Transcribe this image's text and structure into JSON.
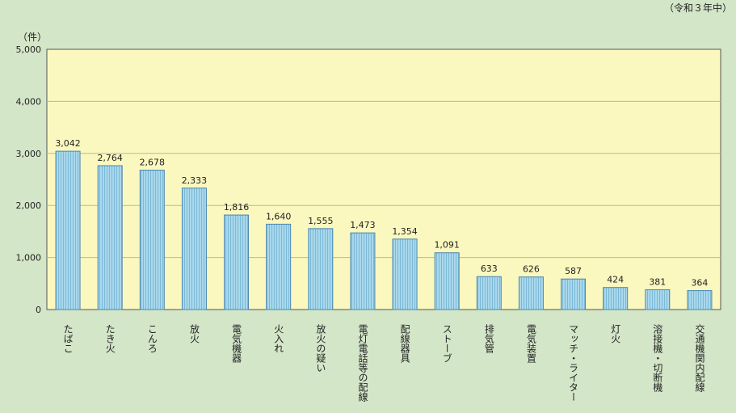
{
  "chart_data": {
    "type": "bar",
    "period_note": "（令和３年中）",
    "unit_label": "（件）",
    "ylim": [
      0,
      5000
    ],
    "yticks": [
      0,
      1000,
      2000,
      3000,
      4000,
      5000
    ],
    "ytick_labels": [
      "0",
      "1,000",
      "2,000",
      "3,000",
      "4,000",
      "5,000"
    ],
    "categories": [
      "たばこ",
      "たき火",
      "こんろ",
      "放火",
      "電気機器",
      "火入れ",
      "放火の疑い",
      "電灯電話等の配線",
      "配線器具",
      "ストーブ",
      "排気管",
      "電気装置",
      "マッチ・ライター",
      "灯火",
      "溶接機・切断機",
      "交通機関内配線"
    ],
    "values": [
      3042,
      2764,
      2678,
      2333,
      1816,
      1640,
      1555,
      1473,
      1354,
      1091,
      633,
      626,
      587,
      424,
      381,
      364
    ],
    "value_labels": [
      "3,042",
      "2,764",
      "2,678",
      "2,333",
      "1,816",
      "1,640",
      "1,555",
      "1,473",
      "1,354",
      "1,091",
      "633",
      "626",
      "587",
      "424",
      "381",
      "364"
    ],
    "grid": true,
    "colors": {
      "background": "#d3e6c8",
      "plot_area": "#fbf8bf",
      "bar_fill": "#a9d8ec",
      "bar_stripe": "#7bb9d6",
      "bar_stroke": "#4a86b0",
      "grid": "#b9b9a0",
      "axis": "#555555"
    }
  }
}
